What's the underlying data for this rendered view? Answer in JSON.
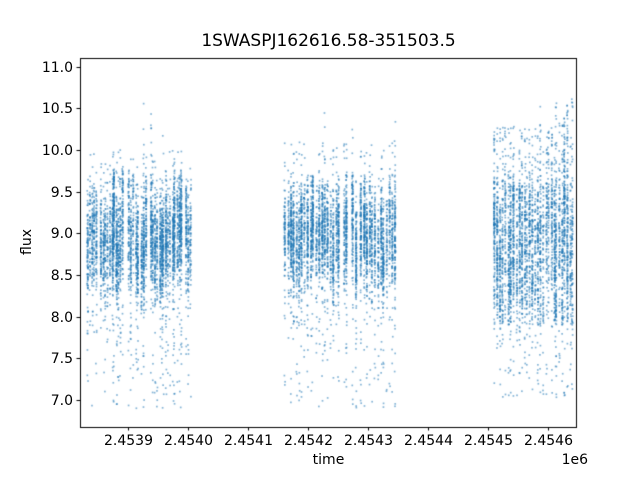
{
  "chart_data": {
    "type": "scatter",
    "title": "1SWASPJ162616.58-351503.5",
    "xlabel": "time",
    "ylabel": "flux",
    "x_offset_text": "1e6",
    "background": "#ffffff",
    "marker_color": "#1f77b4",
    "axis_color": "#000000",
    "grid": false,
    "legend": false,
    "xlim": [
      2453819.4,
      2454648.6
    ],
    "ylim": [
      6.676,
      11.109
    ],
    "xticks": {
      "values": [
        2453900,
        2454000,
        2454100,
        2454200,
        2454300,
        2454400,
        2454500,
        2454600
      ],
      "labels": [
        "2.4539",
        "2.4540",
        "2.4541",
        "2.4542",
        "2.4543",
        "2.4544",
        "2.4545",
        "2.4546"
      ]
    },
    "yticks": {
      "values": [
        7.0,
        7.5,
        8.0,
        8.5,
        9.0,
        9.5,
        10.0,
        10.5,
        11.0
      ],
      "labels": [
        "7.0",
        "7.5",
        "8.0",
        "8.5",
        "9.0",
        "9.5",
        "10.0",
        "10.5",
        "11.0"
      ]
    },
    "note": "SuperWASP photometric light curve: three observing seasons of nightly vertical streaks of ~1px blue markers; dense band near flux 8.3-9.6 with sparse tails down to ~6.9 and up to ~10.9",
    "flux_range_observed": [
      6.9,
      10.9
    ],
    "clusters": [
      {
        "seed": 11,
        "t_start": 2453833,
        "t_end": 2454003,
        "n_nights": 48,
        "skip_prob": 0.08,
        "mean_flux": 8.93,
        "night_scatter": 0.13,
        "core_sigma": 0.3,
        "core_lo": 8.05,
        "core_hi": 9.75,
        "low_tail_prob": 0.09,
        "low_tail_min": 6.9,
        "high_tail_prob": 0.045,
        "high_tail_max": 10.0,
        "tall_night_prob": 0.02,
        "tall_night_max": 10.9,
        "tall_night_indices": [
          29,
          35
        ],
        "pts_min": 55,
        "pts_max": 165
      },
      {
        "seed": 22,
        "t_start": 2454162,
        "t_end": 2454345,
        "n_nights": 40,
        "skip_prob": 0.08,
        "mean_flux": 8.95,
        "night_scatter": 0.12,
        "core_sigma": 0.3,
        "core_lo": 8.1,
        "core_hi": 9.7,
        "low_tail_prob": 0.09,
        "low_tail_min": 6.9,
        "high_tail_prob": 0.05,
        "high_tail_max": 10.1,
        "tall_night_prob": 0.05,
        "tall_night_max": 10.85,
        "tall_night_indices": [
          14,
          24
        ],
        "pts_min": 55,
        "pts_max": 165
      },
      {
        "seed": 33,
        "t_start": 2454512,
        "t_end": 2454642,
        "n_nights": 30,
        "skip_prob": 0.05,
        "mean_flux": 8.72,
        "night_scatter": 0.15,
        "core_sigma": 0.42,
        "core_lo": 7.9,
        "core_hi": 9.6,
        "low_tail_prob": 0.08,
        "low_tail_min": 7.0,
        "high_tail_prob": 0.16,
        "high_tail_max": 10.3,
        "tall_night_prob": 0.4,
        "tall_night_max": 10.85,
        "tall_night_indices": [],
        "pts_min": 65,
        "pts_max": 175
      }
    ]
  }
}
